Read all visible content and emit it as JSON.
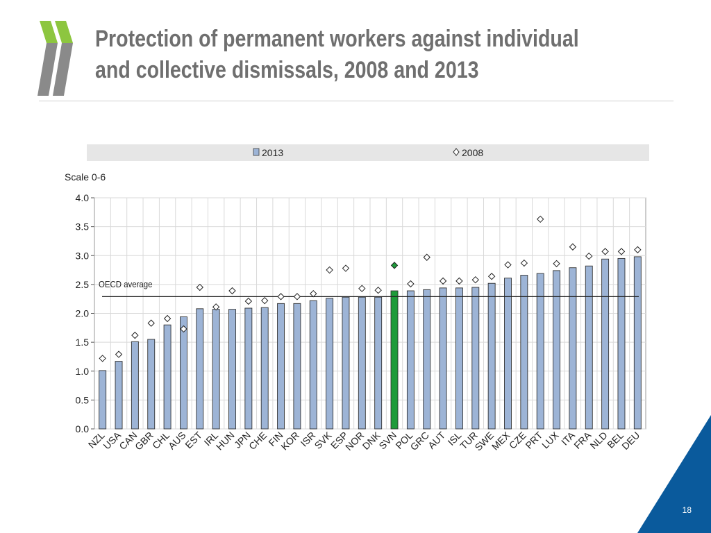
{
  "slide": {
    "title_line1": "Protection of permanent workers against individual",
    "title_line2": "and collective dismissals, 2008 and 2013",
    "page_number": "18"
  },
  "colors": {
    "bar": "#9db4d6",
    "bar_highlight": "#1e9b3a",
    "title": "#6f6f6f",
    "accent_green": "#8dc63f",
    "accent_blue": "#0a5a9c",
    "legend_band": "#e6e6e6"
  },
  "chart_data": {
    "type": "bar",
    "ylabel": "Scale 0-6",
    "ylim": [
      0,
      4
    ],
    "yticks": [
      "0.0",
      "0.5",
      "1.0",
      "1.5",
      "2.0",
      "2.5",
      "3.0",
      "3.5",
      "4.0"
    ],
    "grid": true,
    "legend_position": "top",
    "highlight_category": "SVN",
    "categories": [
      "NZL",
      "USA",
      "CAN",
      "GBR",
      "CHL",
      "AUS",
      "EST",
      "IRL",
      "HUN",
      "JPN",
      "CHE",
      "FIN",
      "KOR",
      "ISR",
      "SVK",
      "ESP",
      "NOR",
      "DNK",
      "SVN",
      "POL",
      "GRC",
      "AUT",
      "ISL",
      "TUR",
      "SWE",
      "MEX",
      "CZE",
      "PRT",
      "LUX",
      "ITA",
      "FRA",
      "NLD",
      "BEL",
      "DEU"
    ],
    "series": [
      {
        "name": "2013",
        "kind": "bar",
        "values": [
          1.01,
          1.17,
          1.51,
          1.55,
          1.8,
          1.94,
          2.08,
          2.07,
          2.07,
          2.09,
          2.1,
          2.17,
          2.17,
          2.22,
          2.26,
          2.28,
          2.28,
          2.28,
          2.39,
          2.39,
          2.41,
          2.44,
          2.44,
          2.45,
          2.52,
          2.61,
          2.66,
          2.69,
          2.74,
          2.79,
          2.82,
          2.94,
          2.95,
          2.98
        ]
      },
      {
        "name": "2008",
        "kind": "marker",
        "values": [
          1.1,
          1.17,
          1.5,
          1.71,
          1.79,
          1.61,
          2.33,
          1.99,
          2.27,
          2.09,
          2.1,
          2.17,
          2.17,
          2.22,
          2.63,
          2.66,
          2.31,
          2.28,
          2.71,
          2.39,
          2.85,
          2.44,
          2.44,
          2.46,
          2.52,
          2.72,
          2.75,
          3.51,
          2.74,
          3.03,
          2.87,
          2.95,
          2.95,
          2.98
        ]
      }
    ],
    "reference_line": {
      "label": "OECD average",
      "value": 2.29
    }
  }
}
